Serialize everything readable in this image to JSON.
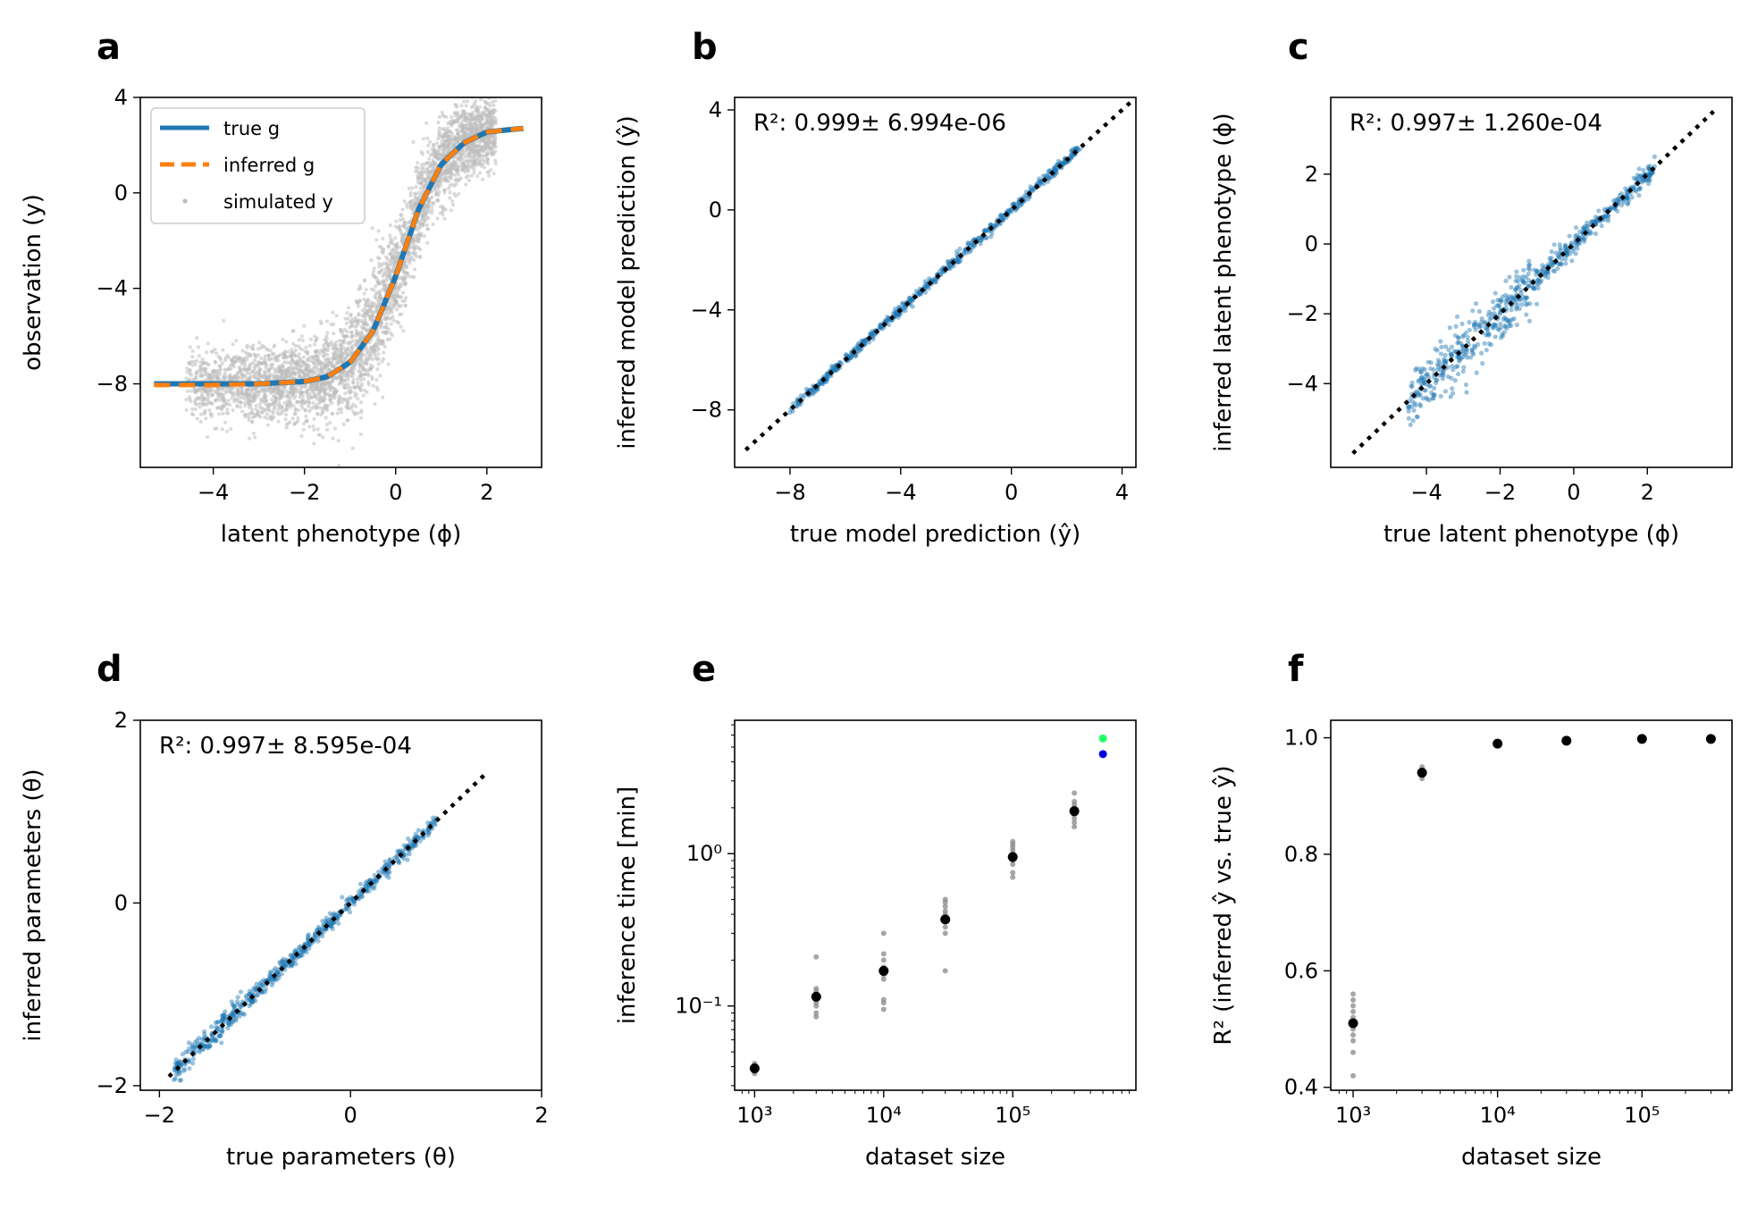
{
  "chart_data": [
    {
      "panel": "a",
      "type": "scatter",
      "xlabel": "latent phenotype (ϕ)",
      "ylabel": "observation (y)",
      "xlim": [
        -5.6,
        3.2
      ],
      "ylim": [
        -11.5,
        4
      ],
      "xticks": [
        -4,
        -2,
        0,
        2
      ],
      "yticks": [
        -8,
        -4,
        0,
        4
      ],
      "legend": {
        "placement": "top-left",
        "entries": [
          {
            "label": "true g",
            "style": "solid",
            "color": "#1f77b4"
          },
          {
            "label": "inferred g",
            "style": "dashed",
            "color": "#ff7f0e"
          },
          {
            "label": "simulated y",
            "style": "dot",
            "color": "#bbbbbb"
          }
        ]
      },
      "series": [
        {
          "name": "true g",
          "type": "line",
          "color": "#1f77b4",
          "x": [
            -5.3,
            -4,
            -3,
            -2,
            -1.5,
            -1,
            -0.5,
            0,
            0.5,
            1,
            1.5,
            2,
            2.5,
            2.8
          ],
          "y": [
            -8.0,
            -8.0,
            -8.0,
            -7.9,
            -7.7,
            -7.1,
            -5.8,
            -3.5,
            -0.7,
            1.2,
            2.1,
            2.55,
            2.65,
            2.7
          ]
        },
        {
          "name": "inferred g",
          "type": "line",
          "color": "#ff7f0e",
          "x": [
            -5.3,
            -4,
            -3,
            -2,
            -1.5,
            -1,
            -0.5,
            0,
            0.5,
            1,
            1.5,
            2,
            2.5,
            2.8
          ],
          "y": [
            -8.05,
            -8.05,
            -8.0,
            -7.9,
            -7.7,
            -7.1,
            -5.8,
            -3.5,
            -0.7,
            1.2,
            2.1,
            2.55,
            2.65,
            2.7
          ]
        },
        {
          "name": "simulated y",
          "type": "scatter-cloud",
          "color": "#bdbdbd",
          "center_curve": "true g",
          "spread": 1.2,
          "x_range": [
            -4.6,
            2.2
          ]
        }
      ]
    },
    {
      "panel": "b",
      "type": "scatter",
      "xlabel": "true model prediction (ŷ)",
      "ylabel": "inferred model prediction (ŷ)",
      "annotation": "R²: 0.999± 6.994e-06",
      "xlim": [
        -10.0,
        4.5
      ],
      "ylim": [
        -10.3,
        4.5
      ],
      "xticks": [
        -8,
        -4,
        0,
        4
      ],
      "yticks": [
        -8,
        -4,
        0,
        4
      ],
      "diagonal": {
        "from": -9.6,
        "to": 4.3,
        "style": "dotted",
        "color": "#000000"
      },
      "points": {
        "x_range": [
          -8.0,
          2.5
        ],
        "spread": 0.1,
        "color": "#1f77b4"
      }
    },
    {
      "panel": "c",
      "type": "scatter",
      "xlabel": "true latent phenotype (ϕ)",
      "ylabel": "inferred latent phenotype (ϕ)",
      "annotation": "R²: 0.997± 1.260e-04",
      "xlim": [
        -6.6,
        4.3
      ],
      "ylim": [
        -6.4,
        4.2
      ],
      "xticks": [
        -4,
        -2,
        0,
        2
      ],
      "yticks": [
        -4,
        -2,
        0,
        2
      ],
      "diagonal": {
        "from": -6.0,
        "to": 3.8,
        "style": "dotted",
        "color": "#000000"
      },
      "points": {
        "x_range": [
          -4.5,
          2.2
        ],
        "spread": 0.18,
        "color": "#1f77b4"
      }
    },
    {
      "panel": "d",
      "type": "scatter",
      "xlabel": "true parameters (θ)",
      "ylabel": "inferred parameters (θ)",
      "annotation": "R²: 0.997± 8.595e-04",
      "xlim": [
        -2.2,
        2.0
      ],
      "ylim": [
        -2.05,
        2.0
      ],
      "xticks": [
        -2,
        0,
        2
      ],
      "yticks": [
        -2,
        0,
        2
      ],
      "diagonal": {
        "from": -1.9,
        "to": 1.4,
        "style": "dotted",
        "color": "#000000"
      },
      "points": {
        "x_range": [
          -1.85,
          0.9
        ],
        "spread": 0.04,
        "color": "#1f77b4"
      }
    },
    {
      "panel": "e",
      "type": "scatter",
      "xlabel": "dataset size",
      "ylabel": "inference time [min]",
      "xscale": "log",
      "yscale": "log",
      "xlim": [
        700,
        900000
      ],
      "ylim": [
        0.028,
        7.5
      ],
      "xticks": [
        1000,
        10000,
        100000
      ],
      "xtick_labels": [
        "10³",
        "10⁴",
        "10⁵"
      ],
      "yticks": [
        0.1,
        1
      ],
      "ytick_labels": [
        "10⁻¹",
        "10⁰"
      ],
      "categories": [
        1000,
        3000,
        10000,
        30000,
        100000,
        300000
      ],
      "mean": [
        0.039,
        0.115,
        0.17,
        0.37,
        0.95,
        1.9
      ],
      "replicates": [
        [
          0.036,
          0.037,
          0.038,
          0.039,
          0.04,
          0.041,
          0.042
        ],
        [
          0.085,
          0.09,
          0.1,
          0.105,
          0.11,
          0.12,
          0.125,
          0.13,
          0.21
        ],
        [
          0.095,
          0.105,
          0.11,
          0.15,
          0.16,
          0.18,
          0.2,
          0.22,
          0.3
        ],
        [
          0.17,
          0.3,
          0.33,
          0.36,
          0.4,
          0.42,
          0.45,
          0.48,
          0.5
        ],
        [
          0.7,
          0.75,
          0.85,
          0.9,
          1.0,
          1.05,
          1.1,
          1.15,
          1.2
        ],
        [
          1.5,
          1.6,
          1.7,
          1.8,
          2.0,
          2.1,
          2.2,
          2.5
        ]
      ],
      "extra_points": [
        {
          "x": 500000,
          "y": 5.7,
          "color": "#22ff66"
        },
        {
          "x": 500000,
          "y": 4.5,
          "color": "#0000dd"
        }
      ],
      "colors": {
        "mean": "#000000",
        "replicates": "#888888"
      }
    },
    {
      "panel": "f",
      "type": "scatter",
      "xlabel": "dataset size",
      "ylabel": "R² (inferred ŷ vs. true ŷ)",
      "xscale": "log",
      "xlim": [
        700,
        420000
      ],
      "ylim": [
        0.395,
        1.03
      ],
      "xticks": [
        1000,
        10000,
        100000
      ],
      "xtick_labels": [
        "10³",
        "10⁴",
        "10⁵"
      ],
      "yticks": [
        0.4,
        0.6,
        0.8,
        1.0
      ],
      "ytick_labels": [
        "0.4",
        "0.6",
        "0.8",
        "1.0"
      ],
      "categories": [
        1000,
        3000,
        10000,
        30000,
        100000,
        300000
      ],
      "mean": [
        0.51,
        0.94,
        0.99,
        0.995,
        0.998,
        0.998
      ],
      "replicates": [
        [
          0.42,
          0.46,
          0.48,
          0.49,
          0.5,
          0.52,
          0.53,
          0.54,
          0.55,
          0.56
        ],
        [
          0.93,
          0.935,
          0.94,
          0.945,
          0.95
        ],
        [
          0.988,
          0.99,
          0.992
        ],
        [
          0.994,
          0.995,
          0.996
        ],
        [
          0.997,
          0.998,
          0.999
        ],
        [
          0.997,
          0.998,
          0.999
        ]
      ],
      "colors": {
        "mean": "#000000",
        "replicates": "#888888"
      }
    }
  ],
  "panel_letters": [
    "a",
    "b",
    "c",
    "d",
    "e",
    "f"
  ]
}
